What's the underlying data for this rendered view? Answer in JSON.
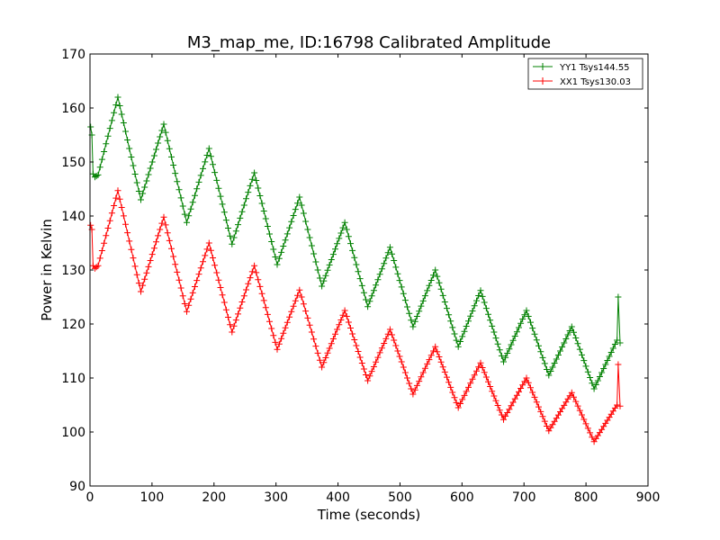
{
  "chart_data": {
    "type": "line",
    "title": "M3_map_me, ID:16798 Calibrated Amplitude",
    "xlabel": "Time (seconds)",
    "ylabel": "Power in Kelvin",
    "xlim": [
      0,
      900
    ],
    "ylim": [
      90,
      170
    ],
    "xticks": [
      0,
      100,
      200,
      300,
      400,
      500,
      600,
      700,
      800,
      900
    ],
    "yticks": [
      90,
      100,
      110,
      120,
      130,
      140,
      150,
      160,
      170
    ],
    "grid": false,
    "legend_position": "top-right",
    "marker": "+",
    "series": [
      {
        "name": "YY1 Tsys144.55",
        "color": "#008000",
        "points": [
          [
            1,
            156.5
          ],
          [
            3,
            155
          ],
          [
            5,
            147.8
          ],
          [
            8,
            147.2
          ],
          [
            13,
            147.6
          ],
          [
            45,
            162
          ],
          [
            82,
            143
          ],
          [
            119,
            157
          ],
          [
            156,
            138.8
          ],
          [
            192,
            152.5
          ],
          [
            229,
            134.8
          ],
          [
            265,
            148
          ],
          [
            302,
            131
          ],
          [
            338,
            143.5
          ],
          [
            374,
            127
          ],
          [
            411,
            138.8
          ],
          [
            448,
            123.2
          ],
          [
            484,
            134.2
          ],
          [
            521,
            119.5
          ],
          [
            557,
            130
          ],
          [
            594,
            115.8
          ],
          [
            630,
            126.2
          ],
          [
            667,
            113
          ],
          [
            704,
            122.5
          ],
          [
            740,
            110.5
          ],
          [
            777,
            119.5
          ],
          [
            813,
            108
          ],
          [
            850,
            117
          ],
          [
            852,
            125
          ],
          [
            855,
            116.5
          ]
        ]
      },
      {
        "name": "XX1 Tsys130.03",
        "color": "#ff0000",
        "points": [
          [
            1,
            138.3
          ],
          [
            3,
            137.5
          ],
          [
            5,
            130.8
          ],
          [
            8,
            130.3
          ],
          [
            13,
            130.8
          ],
          [
            45,
            144.7
          ],
          [
            82,
            126
          ],
          [
            119,
            139.8
          ],
          [
            156,
            122.3
          ],
          [
            192,
            135
          ],
          [
            229,
            118.5
          ],
          [
            265,
            130.8
          ],
          [
            302,
            115.3
          ],
          [
            338,
            126.3
          ],
          [
            374,
            112
          ],
          [
            411,
            122.5
          ],
          [
            448,
            109.5
          ],
          [
            484,
            119
          ],
          [
            521,
            107
          ],
          [
            557,
            115.8
          ],
          [
            594,
            104.5
          ],
          [
            630,
            112.8
          ],
          [
            667,
            102.3
          ],
          [
            704,
            110
          ],
          [
            740,
            100.2
          ],
          [
            777,
            107.3
          ],
          [
            813,
            98.2
          ],
          [
            850,
            105
          ],
          [
            852,
            112.5
          ],
          [
            855,
            104.8
          ]
        ]
      }
    ]
  }
}
